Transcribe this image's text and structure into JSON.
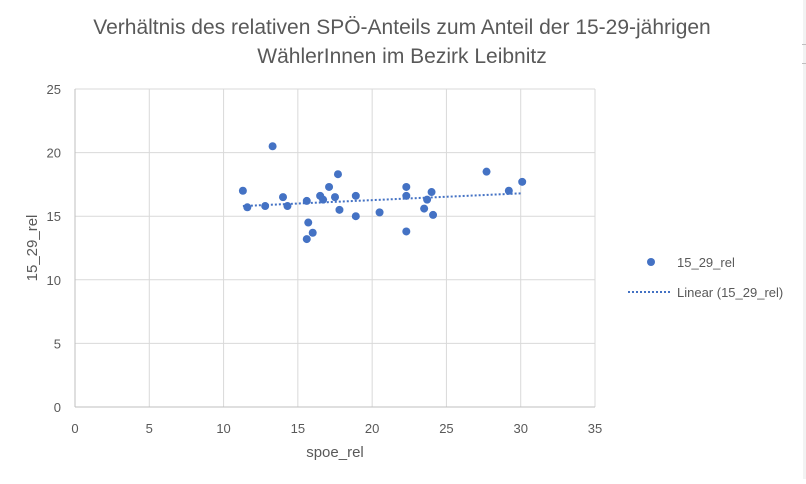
{
  "chart_data": {
    "type": "scatter",
    "title": "Verhältnis des relativen SPÖ-Anteils zum Anteil der 15-29-jährigen WählerInnen im Bezirk Leibnitz",
    "title_lines": [
      "Verhältnis des relativen SPÖ-Anteils zum Anteil der 15-29-jährigen",
      "WählerInnen im Bezirk Leibnitz"
    ],
    "xlabel": "spoe_rel",
    "ylabel": "15_29_rel",
    "xlim": [
      0,
      35
    ],
    "ylim": [
      0,
      25
    ],
    "x_ticks": [
      "0",
      "5",
      "10",
      "15",
      "20",
      "25",
      "30",
      "35"
    ],
    "y_ticks": [
      "0",
      "5",
      "10",
      "15",
      "20",
      "25"
    ],
    "grid": true,
    "legend_position": "right",
    "series": [
      {
        "name": "15_29_rel",
        "color": "#4472c4",
        "points": [
          [
            11.3,
            17.0
          ],
          [
            11.6,
            15.7
          ],
          [
            12.8,
            15.8
          ],
          [
            13.3,
            20.5
          ],
          [
            14.0,
            16.5
          ],
          [
            14.3,
            15.8
          ],
          [
            15.6,
            16.2
          ],
          [
            15.6,
            13.2
          ],
          [
            15.7,
            14.5
          ],
          [
            16.0,
            13.7
          ],
          [
            16.5,
            16.6
          ],
          [
            16.7,
            16.3
          ],
          [
            17.1,
            17.3
          ],
          [
            17.5,
            16.5
          ],
          [
            17.7,
            18.3
          ],
          [
            17.8,
            15.5
          ],
          [
            18.9,
            16.6
          ],
          [
            18.9,
            15.0
          ],
          [
            20.5,
            15.3
          ],
          [
            22.3,
            17.3
          ],
          [
            22.3,
            16.6
          ],
          [
            22.3,
            13.8
          ],
          [
            23.5,
            15.6
          ],
          [
            23.7,
            16.3
          ],
          [
            24.0,
            16.9
          ],
          [
            24.1,
            15.1
          ],
          [
            27.7,
            18.5
          ],
          [
            29.2,
            17.0
          ],
          [
            30.1,
            17.7
          ]
        ]
      }
    ],
    "trendline": {
      "name": "Linear (15_29_rel)",
      "color": "#4472c4",
      "style": "dotted",
      "x": [
        11.3,
        30.1
      ],
      "y": [
        15.8,
        16.8
      ]
    }
  }
}
